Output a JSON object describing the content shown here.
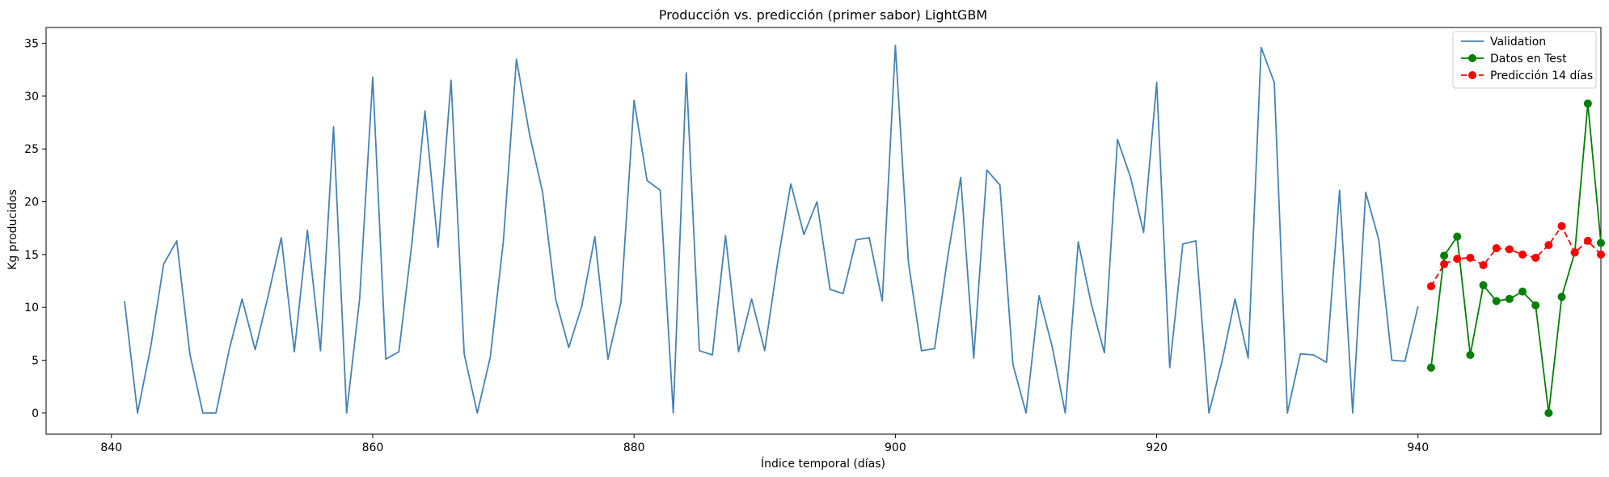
{
  "chart_data": {
    "type": "line",
    "title": "Producción vs. predicción (primer sabor) LightGBM",
    "xlabel": "Índice temporal (días)",
    "ylabel": "Kg producidos",
    "xlim": [
      835,
      954
    ],
    "ylim": [
      -2,
      36.5
    ],
    "xticks": [
      840,
      860,
      880,
      900,
      920,
      940
    ],
    "yticks": [
      0,
      5,
      10,
      15,
      20,
      25,
      30,
      35
    ],
    "grid": false,
    "legend_position": "top-right",
    "series": [
      {
        "name": "Validation",
        "color": "#4682b4",
        "marker": "none",
        "linestyle": "solid",
        "x": [
          841,
          842,
          843,
          844,
          845,
          846,
          847,
          848,
          849,
          850,
          851,
          852,
          853,
          854,
          855,
          856,
          857,
          858,
          859,
          860,
          861,
          862,
          863,
          864,
          865,
          866,
          867,
          868,
          869,
          870,
          871,
          872,
          873,
          874,
          875,
          876,
          877,
          878,
          879,
          880,
          881,
          882,
          883,
          884,
          885,
          886,
          887,
          888,
          889,
          890,
          891,
          892,
          893,
          894,
          895,
          896,
          897,
          898,
          899,
          900,
          901,
          902,
          903,
          904,
          905,
          906,
          907,
          908,
          909,
          910,
          911,
          912,
          913,
          914,
          915,
          916,
          917,
          918,
          919,
          920,
          921,
          922,
          923,
          924,
          925,
          926,
          927,
          928,
          929,
          930,
          931,
          932,
          933,
          934,
          935,
          936,
          937,
          938,
          939,
          940
        ],
        "y": [
          10.6,
          0,
          6.2,
          14.1,
          16.3,
          5.6,
          0,
          0,
          5.9,
          10.8,
          6.0,
          11.1,
          16.6,
          5.8,
          17.3,
          5.9,
          27.1,
          0,
          10.8,
          31.8,
          5.1,
          5.8,
          16.1,
          28.6,
          15.7,
          31.5,
          5.6,
          0,
          5.3,
          16.3,
          33.5,
          26.4,
          20.9,
          10.8,
          6.2,
          10.1,
          16.7,
          5.1,
          10.5,
          29.6,
          22.0,
          21.1,
          0,
          32.2,
          5.9,
          5.5,
          16.8,
          5.8,
          10.8,
          5.9,
          14.3,
          21.7,
          16.9,
          20.0,
          11.7,
          11.3,
          16.4,
          16.6,
          10.6,
          34.8,
          14.3,
          5.9,
          6.1,
          14.7,
          22.3,
          5.2,
          23.0,
          21.6,
          4.6,
          0,
          11.1,
          6.3,
          0,
          16.2,
          10.3,
          5.7,
          25.9,
          22.3,
          17.1,
          31.3,
          4.3,
          16.0,
          16.3,
          0,
          4.9,
          10.8,
          5.2,
          34.6,
          31.3,
          0,
          5.6,
          5.5,
          4.8,
          21.1,
          0,
          20.9,
          16.4,
          5.0,
          4.9,
          10.1
        ]
      },
      {
        "name": "Datos en Test",
        "color": "#008000",
        "marker": "circle",
        "linestyle": "solid",
        "x": [
          941,
          942,
          943,
          944,
          945,
          946,
          947,
          948,
          949,
          950,
          951,
          952,
          953,
          954
        ],
        "y": [
          4.3,
          14.9,
          16.7,
          5.5,
          12.1,
          10.6,
          10.8,
          11.5,
          10.2,
          0,
          11.0,
          15.2,
          29.3,
          16.1
        ]
      },
      {
        "name": "Predicción 14 días",
        "color": "#ff0000",
        "marker": "circle",
        "linestyle": "dashed",
        "x": [
          941,
          942,
          943,
          944,
          945,
          946,
          947,
          948,
          949,
          950,
          951,
          952,
          953,
          954
        ],
        "y": [
          12.0,
          14.1,
          14.6,
          14.7,
          14.0,
          15.6,
          15.5,
          15.0,
          14.7,
          15.9,
          17.7,
          15.2,
          16.3,
          15.0
        ]
      }
    ]
  }
}
